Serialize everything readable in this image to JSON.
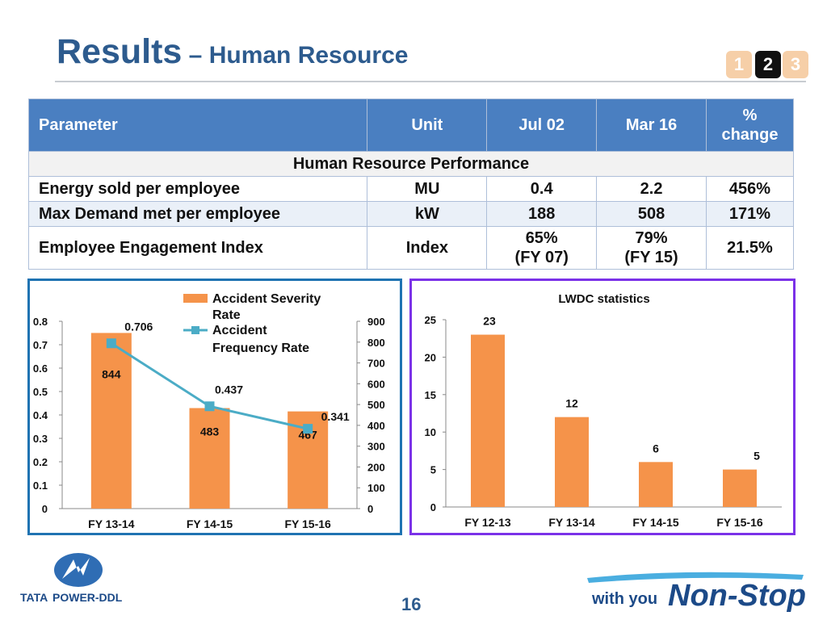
{
  "header": {
    "title_main": "Results",
    "title_sub": " – Human Resource",
    "nav": [
      "1",
      "2",
      "3"
    ]
  },
  "table": {
    "headers": [
      "Parameter",
      "Unit",
      "Jul 02",
      "Mar 16",
      "%",
      "change"
    ],
    "section": "Human Resource Performance",
    "rows": [
      {
        "param": "Energy sold per employee",
        "unit": "MU",
        "jul02": "0.4",
        "mar16": "2.2",
        "change": "456%"
      },
      {
        "param": "Max Demand met per employee",
        "unit": "kW",
        "jul02": "188",
        "mar16": "508",
        "change": "171%"
      },
      {
        "param": "Employee Engagement Index",
        "unit": "Index",
        "jul02": "65%",
        "jul02_note": "(FY 07)",
        "mar16": "79%",
        "mar16_note": "(FY 15)",
        "change": "21.5%"
      }
    ]
  },
  "chart_data": [
    {
      "type": "bar",
      "title": "",
      "categories": [
        "FY 13-14",
        "FY 14-15",
        "FY 15-16"
      ],
      "series": [
        {
          "name": "Accident Severity Rate",
          "type": "bar",
          "axis": "right",
          "values": [
            844,
            483,
            467
          ],
          "color": "#f5934a"
        },
        {
          "name": "Accident Frequency Rate",
          "type": "line",
          "axis": "left",
          "values": [
            0.706,
            0.437,
            0.341
          ],
          "color": "#4bacc6"
        }
      ],
      "legend": [
        "Accident Severity",
        "Rate",
        "Accident",
        "Frequency Rate"
      ],
      "y_left": {
        "min": 0,
        "max": 0.8,
        "ticks": [
          "0",
          "0.1",
          "0.2",
          "0.3",
          "0.4",
          "0.5",
          "0.6",
          "0.7",
          "0.8"
        ]
      },
      "y_right": {
        "min": 0,
        "max": 900,
        "ticks": [
          "0",
          "100",
          "200",
          "300",
          "400",
          "500",
          "600",
          "700",
          "800",
          "900"
        ]
      },
      "bar_labels": [
        "844",
        "483",
        "467"
      ],
      "line_labels": [
        "0.706",
        "0.437",
        "0.341"
      ],
      "legend_position": "top-center",
      "grid": false
    },
    {
      "type": "bar",
      "title": "LWDC statistics",
      "categories": [
        "FY 12-13",
        "FY 13-14",
        "FY 14-15",
        "FY 15-16"
      ],
      "values": [
        23,
        12,
        6,
        5
      ],
      "bar_labels": [
        "23",
        "12",
        "6",
        "5"
      ],
      "ylim": [
        0,
        25
      ],
      "yticks": [
        "0",
        "5",
        "10",
        "15",
        "20",
        "25"
      ],
      "color": "#f5934a",
      "grid": false
    }
  ],
  "footer": {
    "logo_text_bold": "TATA",
    "logo_text": "POWER-DDL",
    "page_number": "16",
    "tagline_small": "with you",
    "tagline_big": "Non-Stop"
  },
  "colors": {
    "title": "#2d5b8e",
    "table_header": "#4a7fc1",
    "bar": "#f5934a",
    "line": "#4bacc6"
  }
}
